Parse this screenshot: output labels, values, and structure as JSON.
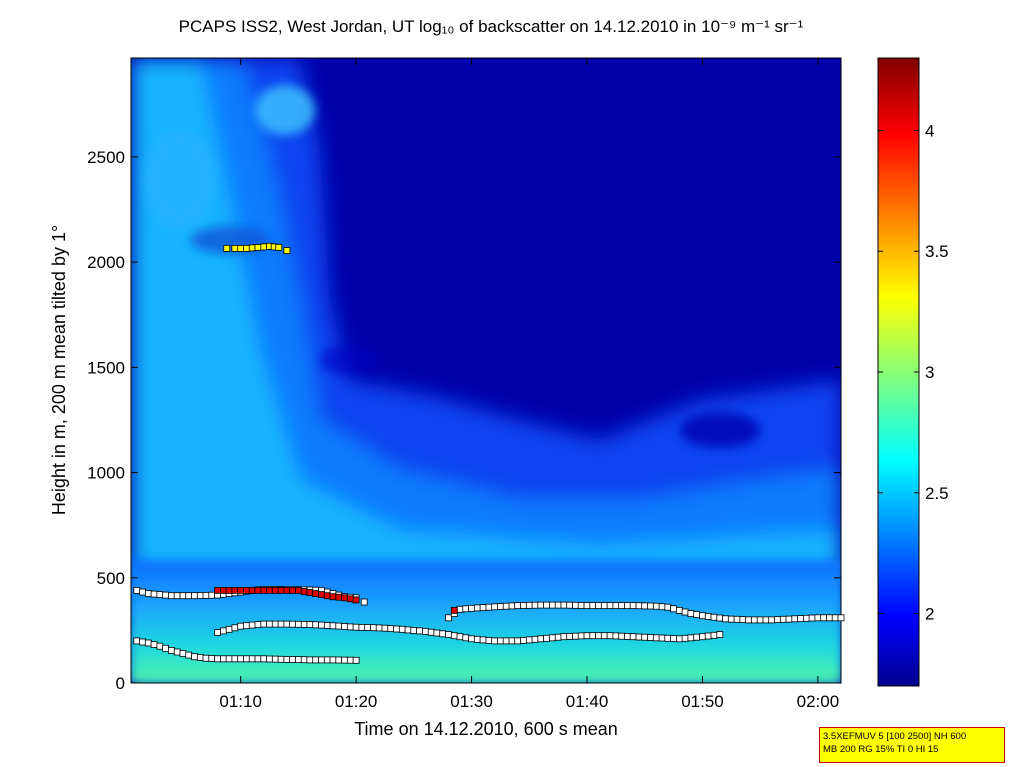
{
  "chart_data": {
    "type": "heatmap",
    "title": "PCAPS ISS2, West Jordan, UT log₁₀ of backscatter on 14.12.2010 in 10⁻⁹ m⁻¹ sr⁻¹",
    "xlabel": "Time on 14.12.2010, 600 s mean",
    "ylabel": "Height in m, 200 m mean tilted by 1°",
    "xlim_minutes": [
      60.5,
      122
    ],
    "ylim": [
      0,
      2970
    ],
    "x_tick_labels": [
      "01:10",
      "01:20",
      "01:30",
      "01:40",
      "01:50",
      "02:00"
    ],
    "x_tick_values_minutes": [
      70,
      80,
      90,
      100,
      110,
      120
    ],
    "y_ticks": [
      0,
      500,
      1000,
      1500,
      2000,
      2500
    ],
    "colorbar": {
      "range": [
        1.7,
        4.3
      ],
      "ticks": [
        2,
        2.5,
        3,
        3.5,
        4
      ],
      "tick_labels": [
        "2",
        "2.5",
        "3",
        "3.5",
        "4"
      ],
      "colormap": "jet"
    },
    "series": [
      {
        "name": "layer-upper",
        "marker_color": "#ffffff",
        "points": [
          [
            61,
            440
          ],
          [
            62,
            425
          ],
          [
            63,
            420
          ],
          [
            64,
            415
          ],
          [
            66,
            415
          ],
          [
            68,
            418
          ],
          [
            69,
            425
          ],
          [
            70,
            432
          ],
          [
            71,
            440
          ],
          [
            72,
            445
          ],
          [
            73,
            445
          ],
          [
            74,
            443
          ],
          [
            75,
            443
          ],
          [
            76,
            442
          ],
          [
            77,
            440
          ],
          [
            78,
            425
          ],
          [
            79,
            410
          ],
          [
            80,
            405
          ],
          [
            80.7,
            385
          ],
          [
            88,
            310
          ],
          [
            89,
            350
          ],
          [
            90,
            355
          ],
          [
            92,
            362
          ],
          [
            94,
            368
          ],
          [
            96,
            370
          ],
          [
            98,
            370
          ],
          [
            100,
            368
          ],
          [
            102,
            368
          ],
          [
            104,
            368
          ],
          [
            106,
            365
          ],
          [
            107,
            360
          ],
          [
            108,
            345
          ],
          [
            109,
            330
          ],
          [
            110,
            320
          ],
          [
            112,
            305
          ],
          [
            114,
            300
          ],
          [
            116,
            300
          ],
          [
            118,
            305
          ],
          [
            120,
            310
          ],
          [
            122,
            310
          ]
        ]
      },
      {
        "name": "layer-middle",
        "marker_color": "#ffffff",
        "points": [
          [
            68,
            240
          ],
          [
            69,
            255
          ],
          [
            70,
            270
          ],
          [
            72,
            280
          ],
          [
            74,
            280
          ],
          [
            76,
            278
          ],
          [
            78,
            272
          ],
          [
            80,
            265
          ],
          [
            82,
            262
          ],
          [
            84,
            255
          ],
          [
            86,
            245
          ],
          [
            88,
            230
          ],
          [
            90,
            210
          ],
          [
            92,
            200
          ],
          [
            94,
            200
          ],
          [
            96,
            210
          ],
          [
            98,
            220
          ],
          [
            100,
            225
          ],
          [
            102,
            225
          ],
          [
            104,
            220
          ],
          [
            106,
            215
          ],
          [
            108,
            210
          ],
          [
            110,
            220
          ],
          [
            111.5,
            230
          ]
        ]
      },
      {
        "name": "layer-lower",
        "marker_color": "#ffffff",
        "points": [
          [
            61,
            200
          ],
          [
            62,
            190
          ],
          [
            63,
            175
          ],
          [
            64,
            155
          ],
          [
            65,
            140
          ],
          [
            66,
            125
          ],
          [
            67,
            118
          ],
          [
            68,
            115
          ],
          [
            70,
            115
          ],
          [
            72,
            115
          ],
          [
            74,
            112
          ],
          [
            76,
            110
          ],
          [
            78,
            110
          ],
          [
            80,
            108
          ]
        ]
      },
      {
        "name": "layer-top",
        "marker_color": "#ffff00",
        "points": [
          [
            68.8,
            2065
          ],
          [
            69.5,
            2065
          ],
          [
            70.5,
            2065
          ],
          [
            71.5,
            2070
          ],
          [
            72.5,
            2075
          ],
          [
            73.3,
            2070
          ],
          [
            74,
            2055
          ]
        ]
      },
      {
        "name": "layer-upper-highlight",
        "marker_color": "#dd0000",
        "points": [
          [
            68,
            440
          ],
          [
            69,
            440
          ],
          [
            70,
            440
          ],
          [
            71,
            440
          ],
          [
            72,
            440
          ],
          [
            73,
            440
          ],
          [
            74,
            440
          ],
          [
            75,
            440
          ],
          [
            76,
            430
          ],
          [
            77,
            420
          ],
          [
            78,
            410
          ],
          [
            79,
            405
          ],
          [
            80,
            395
          ]
        ]
      },
      {
        "name": "layer-upper-highlight-2",
        "marker_color": "#dd0000",
        "points": [
          [
            88.5,
            345
          ]
        ]
      }
    ]
  },
  "info_box": {
    "line1": "3.5XEFMUV 5 [100 2500] NH 600",
    "line2": "MB 200 RG 15% TI 0 HI 15"
  }
}
